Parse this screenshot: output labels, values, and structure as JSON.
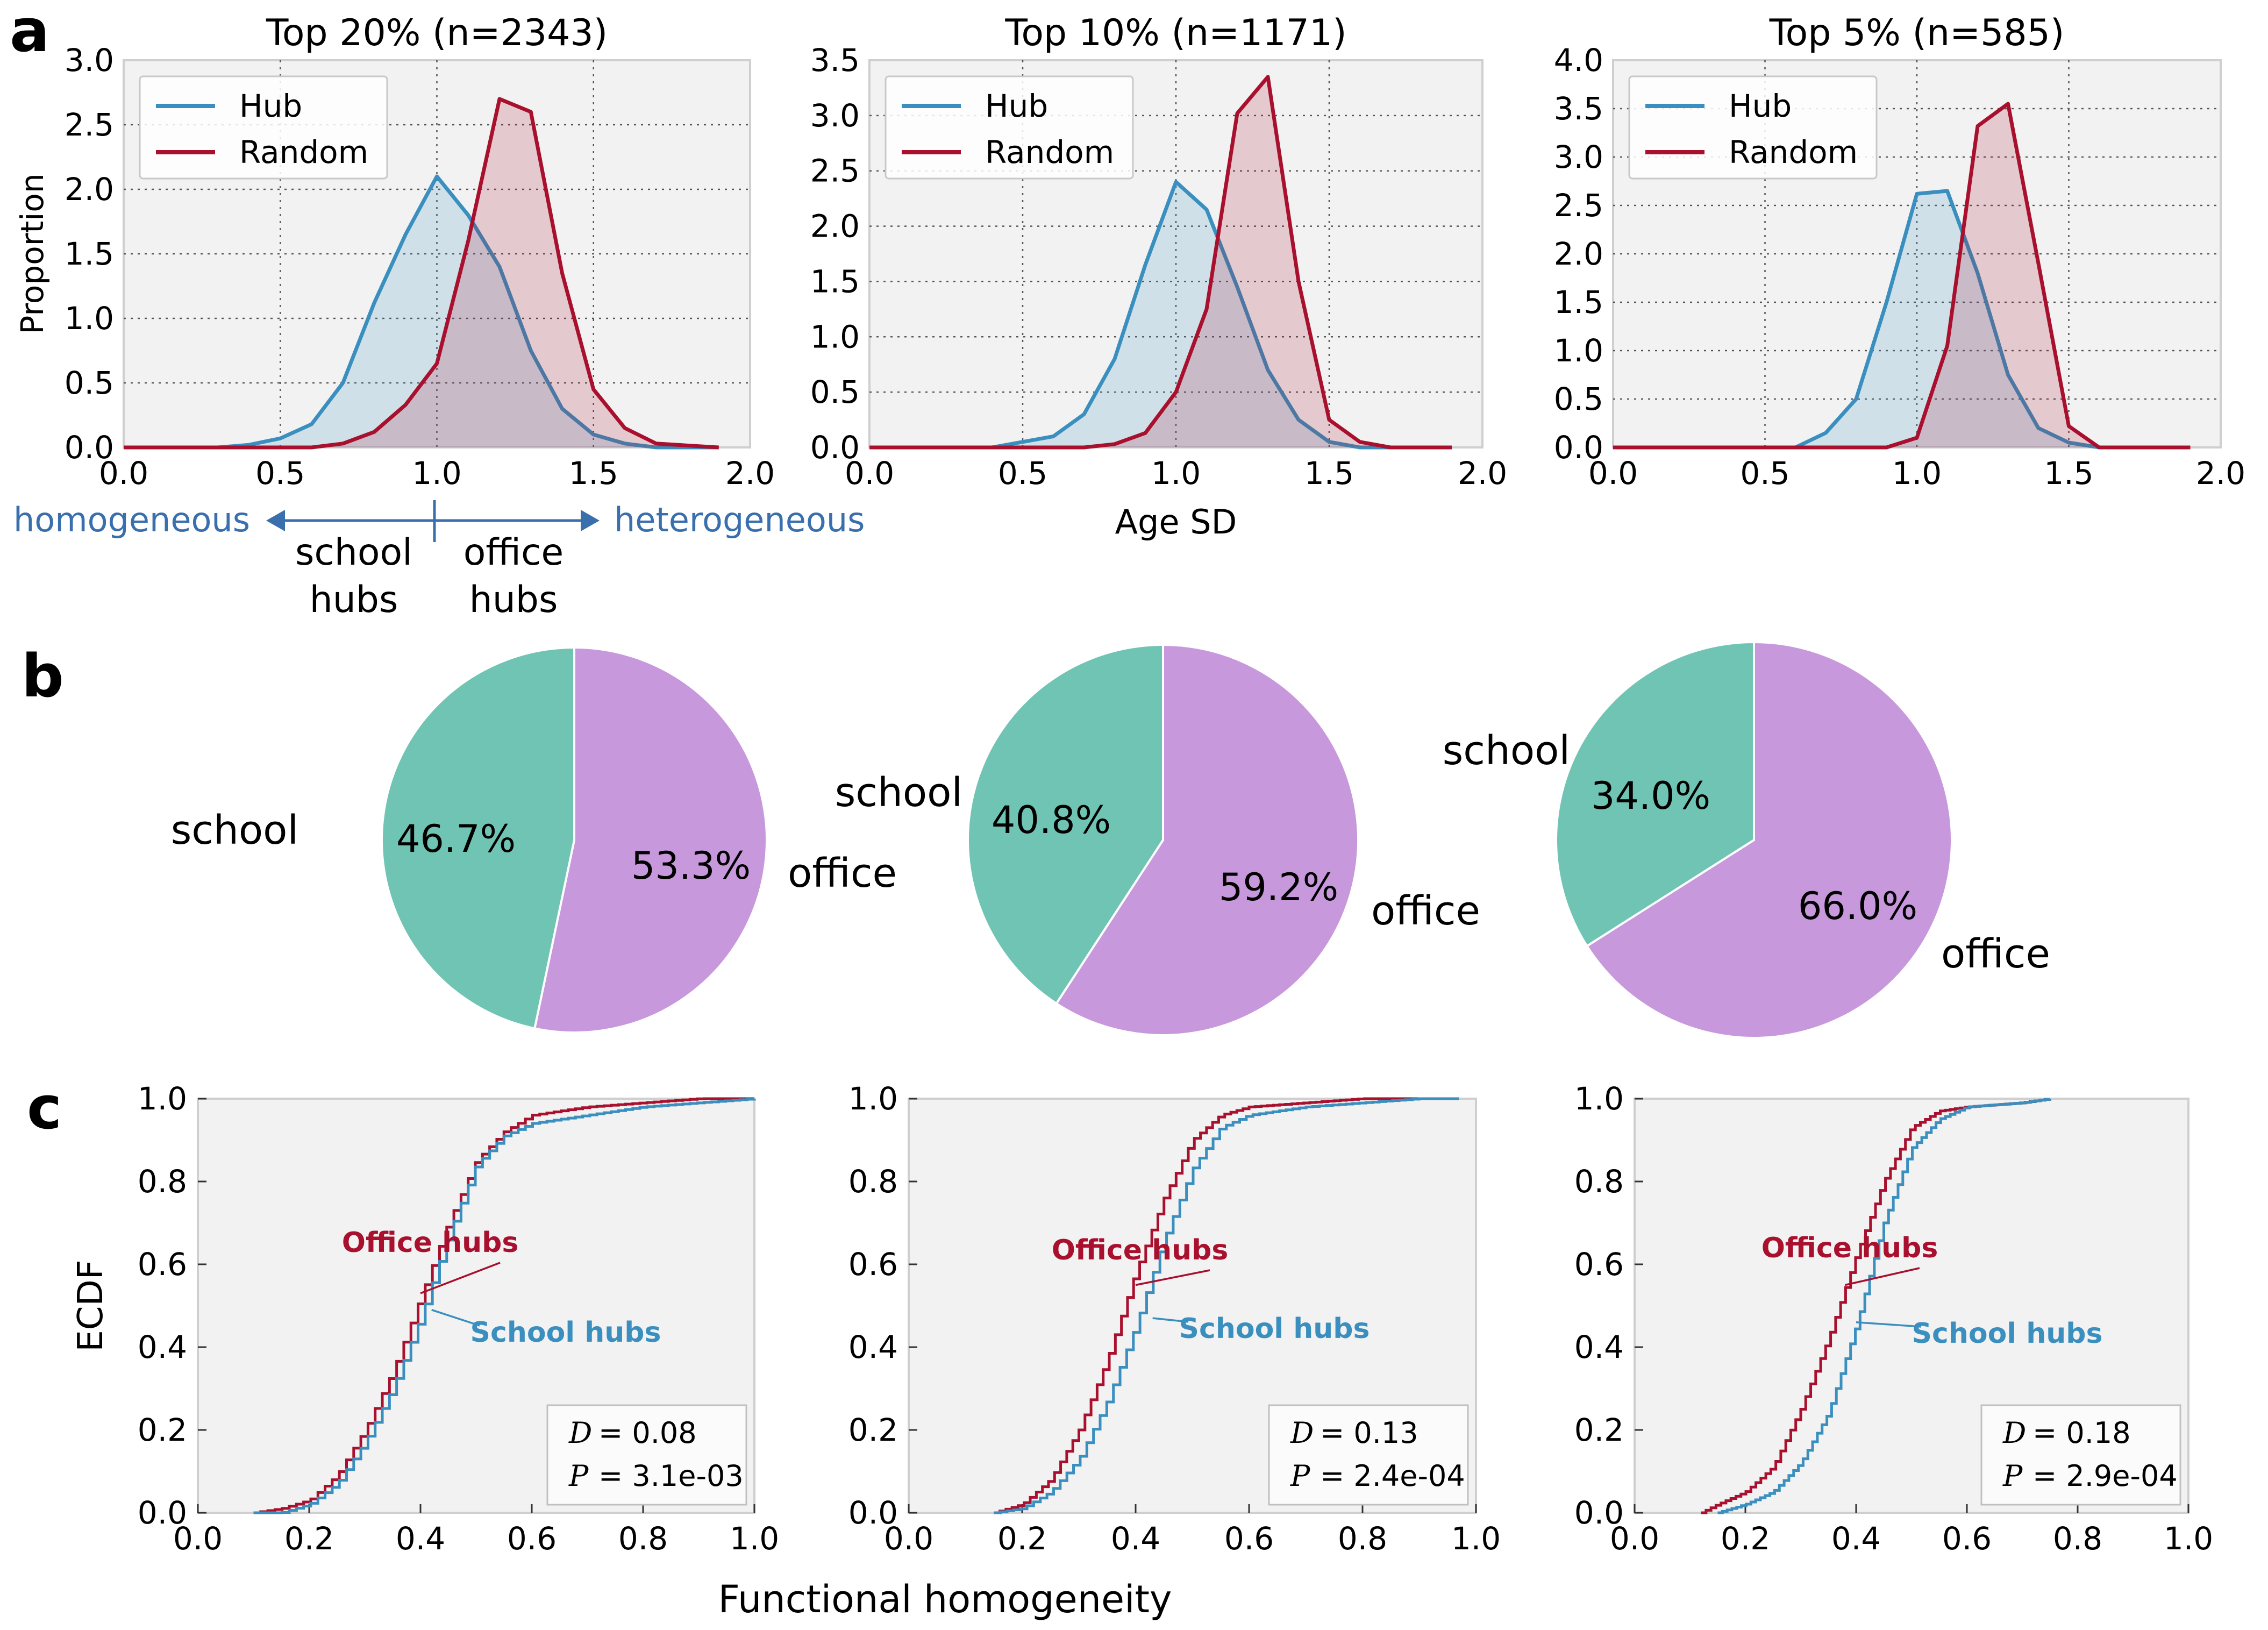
{
  "panel_labels": [
    "a",
    "b",
    "c"
  ],
  "colors": {
    "hub": "#3a8fbf",
    "random": "#a8102e",
    "school": "#70c4b4",
    "office": "#c898dc",
    "axes_bg": "#f2f2f2",
    "arrow": "#3a6fad"
  },
  "annotations": {
    "homogeneous": "homogeneous",
    "heterogeneous": "heterogeneous",
    "school_hubs_1": "school",
    "school_hubs_2": "hubs",
    "office_hubs_1": "office",
    "office_hubs_2": "hubs"
  },
  "pie_labels": {
    "school": "school",
    "office": "office"
  },
  "chart_data": [
    {
      "panel": "a",
      "type": "area",
      "title": "Top 20% (n=2343)",
      "xlabel": "",
      "ylabel": "Proportion",
      "xlim": [
        0.0,
        2.0
      ],
      "ylim": [
        0.0,
        3.0
      ],
      "xticks": [
        "0.0",
        "0.5",
        "1.0",
        "1.5",
        "2.0"
      ],
      "yticks": [
        "0.0",
        "0.5",
        "1.0",
        "1.5",
        "2.0",
        "2.5",
        "3.0"
      ],
      "legend": [
        "Hub",
        "Random"
      ],
      "legend_position": "upper-left",
      "grid": true,
      "series": [
        {
          "name": "Hub",
          "x": [
            0.0,
            0.3,
            0.4,
            0.5,
            0.6,
            0.7,
            0.8,
            0.9,
            1.0,
            1.1,
            1.2,
            1.3,
            1.4,
            1.5,
            1.6,
            1.7,
            1.9
          ],
          "y": [
            0.0,
            0.0,
            0.02,
            0.07,
            0.18,
            0.5,
            1.12,
            1.65,
            2.1,
            1.8,
            1.4,
            0.75,
            0.3,
            0.1,
            0.03,
            0.0,
            0.0
          ]
        },
        {
          "name": "Random",
          "x": [
            0.0,
            0.6,
            0.7,
            0.8,
            0.9,
            1.0,
            1.1,
            1.2,
            1.3,
            1.4,
            1.5,
            1.6,
            1.7,
            1.9
          ],
          "y": [
            0.0,
            0.0,
            0.03,
            0.12,
            0.33,
            0.65,
            1.6,
            2.7,
            2.6,
            1.35,
            0.45,
            0.15,
            0.03,
            0.0
          ]
        }
      ]
    },
    {
      "panel": "a",
      "type": "area",
      "title": "Top 10% (n=1171)",
      "xlabel": "Age SD",
      "ylabel": "",
      "xlim": [
        0.0,
        2.0
      ],
      "ylim": [
        0.0,
        3.5
      ],
      "xticks": [
        "0.0",
        "0.5",
        "1.0",
        "1.5",
        "2.0"
      ],
      "yticks": [
        "0.0",
        "0.5",
        "1.0",
        "1.5",
        "2.0",
        "2.5",
        "3.0",
        "3.5"
      ],
      "legend": [
        "Hub",
        "Random"
      ],
      "legend_position": "upper-left",
      "grid": true,
      "series": [
        {
          "name": "Hub",
          "x": [
            0.0,
            0.4,
            0.5,
            0.6,
            0.7,
            0.8,
            0.9,
            1.0,
            1.1,
            1.2,
            1.3,
            1.4,
            1.5,
            1.6,
            1.9
          ],
          "y": [
            0.0,
            0.0,
            0.05,
            0.1,
            0.3,
            0.8,
            1.65,
            2.4,
            2.15,
            1.45,
            0.7,
            0.25,
            0.05,
            0.0,
            0.0
          ]
        },
        {
          "name": "Random",
          "x": [
            0.0,
            0.7,
            0.8,
            0.9,
            1.0,
            1.1,
            1.2,
            1.3,
            1.4,
            1.5,
            1.6,
            1.7,
            1.9
          ],
          "y": [
            0.0,
            0.0,
            0.03,
            0.13,
            0.5,
            1.25,
            3.02,
            3.35,
            1.5,
            0.25,
            0.05,
            0.0,
            0.0
          ]
        }
      ]
    },
    {
      "panel": "a",
      "type": "area",
      "title": "Top 5% (n=585)",
      "xlabel": "",
      "ylabel": "",
      "xlim": [
        0.0,
        2.0
      ],
      "ylim": [
        0.0,
        4.0
      ],
      "xticks": [
        "0.0",
        "0.5",
        "1.0",
        "1.5",
        "2.0"
      ],
      "yticks": [
        "0.0",
        "0.5",
        "1.0",
        "1.5",
        "2.0",
        "2.5",
        "3.0",
        "3.5",
        "4.0"
      ],
      "legend": [
        "Hub",
        "Random"
      ],
      "legend_position": "upper-left",
      "grid": true,
      "series": [
        {
          "name": "Hub",
          "x": [
            0.0,
            0.6,
            0.7,
            0.8,
            0.9,
            1.0,
            1.1,
            1.2,
            1.3,
            1.4,
            1.5,
            1.6,
            1.9
          ],
          "y": [
            0.0,
            0.0,
            0.15,
            0.5,
            1.5,
            2.62,
            2.65,
            1.8,
            0.75,
            0.2,
            0.05,
            0.0,
            0.0
          ]
        },
        {
          "name": "Random",
          "x": [
            0.0,
            0.9,
            1.0,
            1.1,
            1.2,
            1.3,
            1.4,
            1.5,
            1.6,
            1.9
          ],
          "y": [
            0.0,
            0.0,
            0.1,
            1.05,
            3.32,
            3.55,
            1.9,
            0.22,
            0.0,
            0.0
          ]
        }
      ]
    },
    {
      "panel": "b",
      "type": "pie",
      "slices": [
        {
          "label": "school",
          "value": 46.7,
          "text": "46.7%"
        },
        {
          "label": "office",
          "value": 53.3,
          "text": "53.3%"
        }
      ]
    },
    {
      "panel": "b",
      "type": "pie",
      "slices": [
        {
          "label": "school",
          "value": 40.8,
          "text": "40.8%"
        },
        {
          "label": "office",
          "value": 59.2,
          "text": "59.2%"
        }
      ]
    },
    {
      "panel": "b",
      "type": "pie",
      "slices": [
        {
          "label": "school",
          "value": 34.0,
          "text": "34.0%"
        },
        {
          "label": "office",
          "value": 66.0,
          "text": "66.0%"
        }
      ]
    },
    {
      "panel": "c",
      "type": "line",
      "xlabel": "",
      "ylabel": "ECDF",
      "xlim": [
        0.0,
        1.0
      ],
      "ylim": [
        0.0,
        1.0
      ],
      "xticks": [
        "0.0",
        "0.2",
        "0.4",
        "0.6",
        "0.8",
        "1.0"
      ],
      "yticks": [
        "0.0",
        "0.2",
        "0.4",
        "0.6",
        "0.8",
        "1.0"
      ],
      "grid": false,
      "stats": {
        "D_label": "D",
        "D_text": "= 0.08",
        "P_label": "P",
        "P_text": "= 3.1e-03"
      },
      "labels": {
        "office": "Office hubs",
        "school": "School hubs"
      },
      "series": [
        {
          "name": "Office hubs",
          "x": [
            0.1,
            0.15,
            0.2,
            0.25,
            0.3,
            0.35,
            0.4,
            0.45,
            0.5,
            0.55,
            0.6,
            0.7,
            0.8,
            0.9,
            1.0
          ],
          "y": [
            0.0,
            0.01,
            0.03,
            0.09,
            0.2,
            0.34,
            0.52,
            0.7,
            0.85,
            0.92,
            0.96,
            0.98,
            0.99,
            1.0,
            1.0
          ]
        },
        {
          "name": "School hubs",
          "x": [
            0.1,
            0.15,
            0.2,
            0.25,
            0.3,
            0.35,
            0.4,
            0.45,
            0.5,
            0.55,
            0.6,
            0.7,
            0.8,
            0.9,
            1.0
          ],
          "y": [
            0.0,
            0.0,
            0.02,
            0.07,
            0.17,
            0.3,
            0.47,
            0.67,
            0.84,
            0.91,
            0.94,
            0.96,
            0.98,
            0.99,
            1.0
          ]
        }
      ]
    },
    {
      "panel": "c",
      "type": "line",
      "xlabel": "Functional homogeneity",
      "ylabel": "",
      "xlim": [
        0.0,
        1.0
      ],
      "ylim": [
        0.0,
        1.0
      ],
      "xticks": [
        "0.0",
        "0.2",
        "0.4",
        "0.6",
        "0.8",
        "1.0"
      ],
      "yticks": [
        "0.0",
        "0.2",
        "0.4",
        "0.6",
        "0.8",
        "1.0"
      ],
      "grid": false,
      "stats": {
        "D_label": "D",
        "D_text": "= 0.13",
        "P_label": "P",
        "P_text": "= 2.4e-04"
      },
      "labels": {
        "office": "Office hubs",
        "school": "School hubs"
      },
      "series": [
        {
          "name": "Office hubs",
          "x": [
            0.15,
            0.2,
            0.25,
            0.3,
            0.35,
            0.4,
            0.45,
            0.5,
            0.55,
            0.6,
            0.7,
            0.8,
            0.9
          ],
          "y": [
            0.0,
            0.02,
            0.08,
            0.2,
            0.37,
            0.58,
            0.76,
            0.9,
            0.96,
            0.98,
            0.99,
            1.0,
            1.0
          ]
        },
        {
          "name": "School hubs",
          "x": [
            0.15,
            0.2,
            0.25,
            0.3,
            0.35,
            0.4,
            0.45,
            0.5,
            0.55,
            0.6,
            0.7,
            0.8,
            0.9,
            0.97
          ],
          "y": [
            0.0,
            0.01,
            0.05,
            0.13,
            0.27,
            0.45,
            0.66,
            0.83,
            0.93,
            0.96,
            0.98,
            0.99,
            1.0,
            1.0
          ]
        }
      ]
    },
    {
      "panel": "c",
      "type": "line",
      "xlabel": "",
      "ylabel": "",
      "xlim": [
        0.0,
        1.0
      ],
      "ylim": [
        0.0,
        1.0
      ],
      "xticks": [
        "0.0",
        "0.2",
        "0.4",
        "0.6",
        "0.8",
        "1.0"
      ],
      "yticks": [
        "0.0",
        "0.2",
        "0.4",
        "0.6",
        "0.8",
        "1.0"
      ],
      "grid": false,
      "stats": {
        "D_label": "D",
        "D_text": "= 0.18",
        "P_label": "P",
        "P_text": "= 2.9e-04"
      },
      "labels": {
        "office": "Office hubs",
        "school": "School hubs"
      },
      "series": [
        {
          "name": "Office hubs",
          "x": [
            0.12,
            0.15,
            0.2,
            0.25,
            0.3,
            0.35,
            0.4,
            0.45,
            0.5,
            0.55,
            0.6,
            0.7,
            0.75
          ],
          "y": [
            0.0,
            0.02,
            0.05,
            0.11,
            0.25,
            0.42,
            0.62,
            0.8,
            0.93,
            0.97,
            0.98,
            0.99,
            1.0
          ]
        },
        {
          "name": "School hubs",
          "x": [
            0.15,
            0.2,
            0.25,
            0.3,
            0.35,
            0.4,
            0.45,
            0.5,
            0.55,
            0.6,
            0.7,
            0.75
          ],
          "y": [
            0.0,
            0.02,
            0.05,
            0.12,
            0.24,
            0.45,
            0.7,
            0.88,
            0.95,
            0.98,
            0.99,
            1.0
          ]
        }
      ]
    }
  ]
}
